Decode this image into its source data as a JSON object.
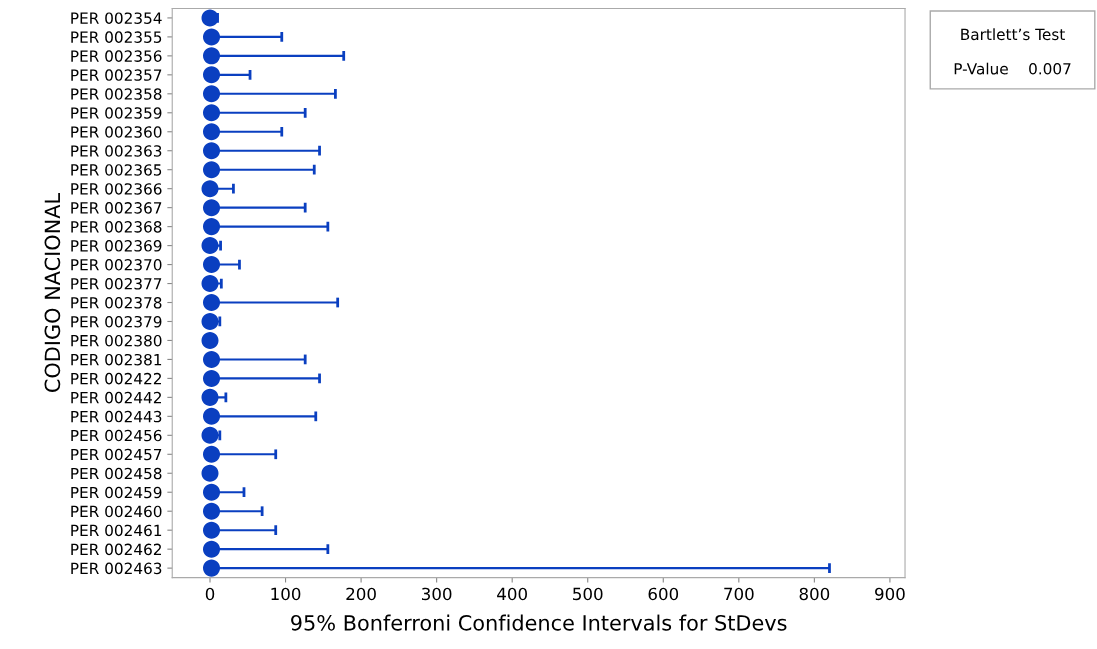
{
  "chart_data": {
    "type": "scatter",
    "orientation": "horizontal",
    "xlabel": "95% Bonferroni Confidence Intervals for StDevs",
    "ylabel": "CODIGO NACIONAL",
    "categories": [
      "PER 002354",
      "PER 002355",
      "PER 002356",
      "PER 002357",
      "PER 002358",
      "PER 002359",
      "PER 002360",
      "PER 002363",
      "PER 002365",
      "PER 002366",
      "PER 002367",
      "PER 002368",
      "PER 002369",
      "PER 002370",
      "PER 002377",
      "PER 002378",
      "PER 002379",
      "PER 002380",
      "PER 002381",
      "PER 002422",
      "PER 002442",
      "PER 002443",
      "PER 002456",
      "PER 002457",
      "PER 002458",
      "PER 002459",
      "PER 002460",
      "PER 002461",
      "PER 002462",
      "PER 002463"
    ],
    "series": [
      {
        "color": "#0a3fc0",
        "values": [
          0,
          2,
          2,
          2,
          2,
          2,
          2,
          2,
          2,
          0,
          2,
          2,
          0,
          2,
          0,
          2,
          0,
          0,
          2,
          2,
          0,
          2,
          0,
          2,
          0,
          2,
          2,
          2,
          2,
          2
        ],
        "errors": [
          [
            0,
            10
          ],
          [
            0,
            95
          ],
          [
            0,
            177
          ],
          [
            0,
            53
          ],
          [
            0,
            166
          ],
          [
            0,
            126
          ],
          [
            0,
            95
          ],
          [
            0,
            145
          ],
          [
            0,
            138
          ],
          [
            0,
            31
          ],
          [
            0,
            126
          ],
          [
            0,
            156
          ],
          [
            0,
            14
          ],
          [
            0,
            39
          ],
          [
            0,
            15
          ],
          [
            0,
            169
          ],
          [
            0,
            13
          ],
          [
            0,
            3
          ],
          [
            0,
            126
          ],
          [
            0,
            145
          ],
          [
            0,
            21
          ],
          [
            0,
            140
          ],
          [
            0,
            13
          ],
          [
            0,
            87
          ],
          [
            0,
            3
          ],
          [
            0,
            45
          ],
          [
            0,
            69
          ],
          [
            0,
            87
          ],
          [
            0,
            156
          ],
          [
            0,
            820
          ]
        ]
      }
    ],
    "xlim": [
      -50,
      920
    ],
    "xticks": [
      0,
      100,
      200,
      300,
      400,
      500,
      600,
      700,
      800,
      900
    ],
    "marker": "circle",
    "grid": false,
    "annotations": [
      "Bartlett’s Test",
      "P-Value    0.007"
    ]
  }
}
